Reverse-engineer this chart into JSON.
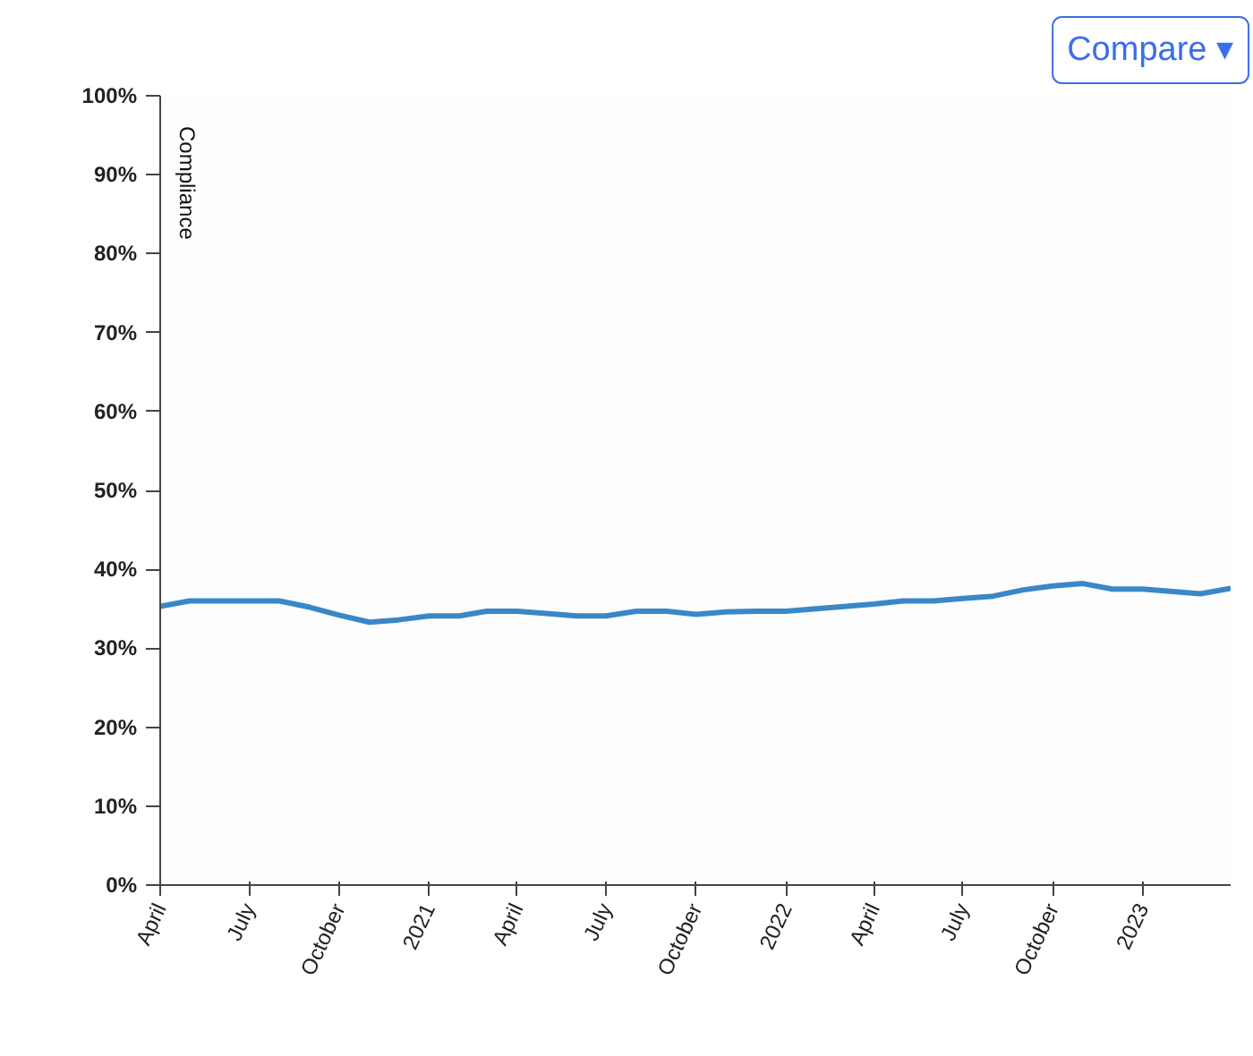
{
  "chart_data": {
    "type": "line",
    "ylabel": "Compliance",
    "annotations": [
      "Compare ▾"
    ],
    "x": [
      "2020-04",
      "2020-05",
      "2020-06",
      "2020-07",
      "2020-08",
      "2020-09",
      "2020-10",
      "2020-11",
      "2020-12",
      "2021-01",
      "2021-02",
      "2021-03",
      "2021-04",
      "2021-05",
      "2021-06",
      "2021-07",
      "2021-08",
      "2021-09",
      "2021-10",
      "2021-11",
      "2021-12",
      "2022-01",
      "2022-02",
      "2022-03",
      "2022-04",
      "2022-05",
      "2022-06",
      "2022-07",
      "2022-08",
      "2022-09",
      "2022-10",
      "2022-11",
      "2022-12",
      "2023-01",
      "2023-02",
      "2023-03",
      "2023-04"
    ],
    "series": [
      {
        "color": "#3a87c8",
        "values": [
          35.3,
          36.0,
          36.0,
          36.0,
          36.0,
          35.2,
          34.2,
          33.3,
          33.6,
          34.1,
          34.1,
          34.7,
          34.7,
          34.4,
          34.1,
          34.1,
          34.7,
          34.7,
          34.3,
          34.6,
          34.7,
          34.7,
          35.0,
          35.3,
          35.6,
          36.0,
          36.0,
          36.3,
          36.6,
          37.4,
          37.9,
          38.2,
          37.5,
          37.5,
          37.2,
          36.9,
          37.6
        ]
      }
    ],
    "xlim": [
      "2020-04",
      "2023-04"
    ],
    "xticks": [
      {
        "value": "2020-04",
        "label": "April"
      },
      {
        "value": "2020-07",
        "label": "July"
      },
      {
        "value": "2020-10",
        "label": "October"
      },
      {
        "value": "2021-01",
        "label": "2021"
      },
      {
        "value": "2021-04",
        "label": "April"
      },
      {
        "value": "2021-07",
        "label": "July"
      },
      {
        "value": "2021-10",
        "label": "October"
      },
      {
        "value": "2022-01",
        "label": "2022"
      },
      {
        "value": "2022-04",
        "label": "April"
      },
      {
        "value": "2022-07",
        "label": "July"
      },
      {
        "value": "2022-10",
        "label": "October"
      },
      {
        "value": "2023-01",
        "label": "2023"
      }
    ],
    "ylim": [
      0,
      100
    ],
    "yticks": [
      {
        "value": 0,
        "label": "0%"
      },
      {
        "value": 10,
        "label": "10%"
      },
      {
        "value": 20,
        "label": "20%"
      },
      {
        "value": 30,
        "label": "30%"
      },
      {
        "value": 40,
        "label": "40%"
      },
      {
        "value": 50,
        "label": "50%"
      },
      {
        "value": 60,
        "label": "60%"
      },
      {
        "value": 70,
        "label": "70%"
      },
      {
        "value": 80,
        "label": "80%"
      },
      {
        "value": 90,
        "label": "90%"
      },
      {
        "value": 100,
        "label": "100%"
      }
    ],
    "grid": false
  }
}
